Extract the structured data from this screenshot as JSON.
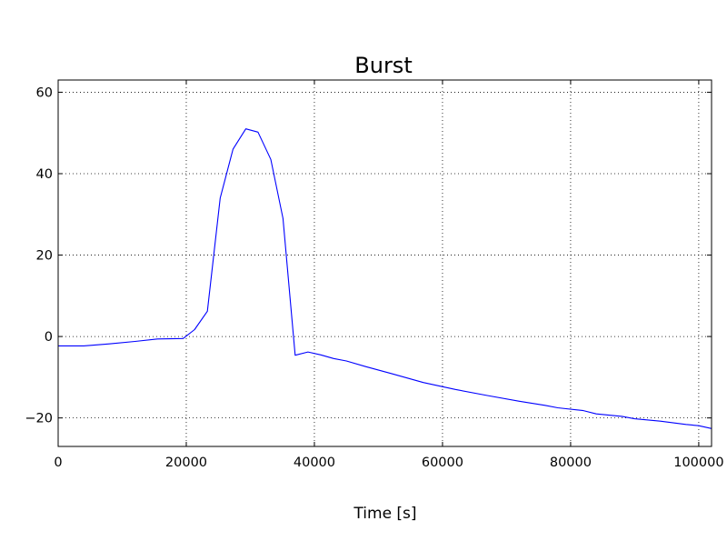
{
  "chart_data": {
    "type": "line",
    "title": "Burst",
    "xlabel": "Time [s]",
    "ylabel": "",
    "xlim": [
      0,
      102000
    ],
    "ylim": [
      -27,
      63
    ],
    "xticks": [
      0,
      20000,
      40000,
      60000,
      80000,
      100000
    ],
    "xtick_labels": [
      "0",
      "20000",
      "40000",
      "60000",
      "80000",
      "100000"
    ],
    "yticks": [
      -20,
      0,
      20,
      40,
      60
    ],
    "ytick_labels": [
      "−20",
      "0",
      "20",
      "40",
      "60"
    ],
    "grid": true,
    "line_color": "#0000ff",
    "series": [
      {
        "x": [
          0,
          4000,
          8000,
          12000,
          15500,
          19500,
          21300,
          23300,
          25300,
          27300,
          29300,
          31200,
          33200,
          35100,
          37000,
          39000,
          41000,
          43000,
          45000,
          48000,
          52000,
          57000,
          62000,
          67000,
          72000,
          76000,
          78000,
          82000,
          84000,
          88000,
          90000,
          94000,
          98000,
          100000,
          102000
        ],
        "y": [
          -2.3,
          -2.3,
          -1.8,
          -1.2,
          -0.6,
          -0.5,
          1.7,
          6.2,
          34.0,
          46.0,
          51.0,
          50.2,
          43.5,
          29.0,
          -4.6,
          -3.8,
          -4.5,
          -5.4,
          -6.0,
          -7.4,
          -9.1,
          -11.3,
          -13.0,
          -14.5,
          -15.9,
          -16.9,
          -17.5,
          -18.2,
          -19.0,
          -19.6,
          -20.2,
          -20.8,
          -21.6,
          -21.9,
          -22.6
        ]
      }
    ]
  }
}
